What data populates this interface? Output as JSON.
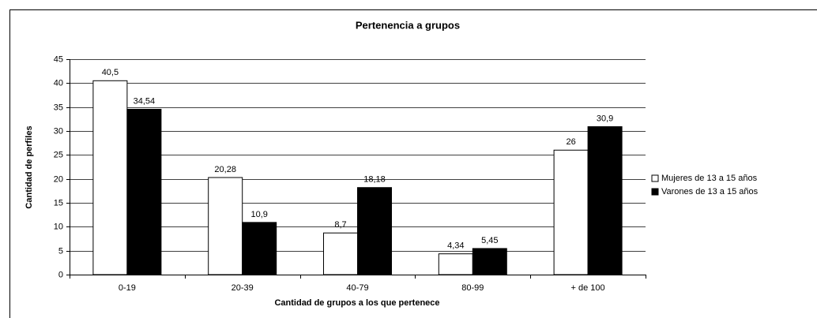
{
  "chart_data": {
    "type": "bar",
    "title": "Pertenencia a grupos",
    "x_label": "Cantidad de grupos a los que pertenece",
    "y_label": "Cantidad de perfiles",
    "categories": [
      "0-19",
      "20-39",
      "40-79",
      "80-99",
      "+ de 100"
    ],
    "series": [
      {
        "name": "Mujeres de 13 a 15 años",
        "color": "#ffffff",
        "values": [
          40.5,
          20.28,
          8.7,
          4.34,
          26
        ],
        "value_labels": [
          "40,5",
          "20,28",
          "8,7",
          "4,34",
          "26"
        ]
      },
      {
        "name": "Varones de 13 a 15 años",
        "color": "#000000",
        "values": [
          34.54,
          10.9,
          18.18,
          5.45,
          30.9
        ],
        "value_labels": [
          "34,54",
          "10,9",
          "18,18",
          "5,45",
          "30,9"
        ]
      }
    ],
    "ylim": [
      0,
      45
    ],
    "yticks": [
      0,
      5,
      10,
      15,
      20,
      25,
      30,
      35,
      40,
      45
    ],
    "grid": true,
    "legend": "right"
  }
}
